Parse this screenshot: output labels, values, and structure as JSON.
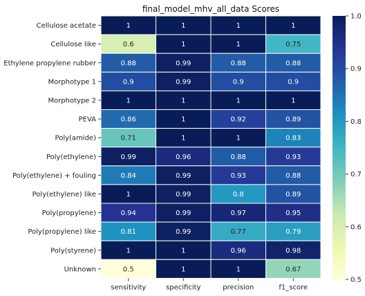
{
  "chart_data": {
    "type": "heatmap",
    "title": "final_model_mhv_all_data Scores",
    "columns": [
      "sensitivity",
      "specificity",
      "precision",
      "f1_score"
    ],
    "rows": [
      {
        "label": "Cellulose acetate",
        "values": [
          1,
          1,
          1,
          1
        ],
        "text": [
          "1",
          "1",
          "1",
          "1"
        ]
      },
      {
        "label": "Cellulose like",
        "values": [
          0.6,
          1,
          1,
          0.75
        ],
        "text": [
          "0.6",
          "1",
          "1",
          "0.75"
        ]
      },
      {
        "label": "Ethylene propylene rubber",
        "values": [
          0.88,
          0.99,
          0.88,
          0.88
        ],
        "text": [
          "0.88",
          "0.99",
          "0.88",
          "0.88"
        ]
      },
      {
        "label": "Morphotype 1",
        "values": [
          0.9,
          0.99,
          0.9,
          0.9
        ],
        "text": [
          "0.9",
          "0.99",
          "0.9",
          "0.9"
        ]
      },
      {
        "label": "Morphotype 2",
        "values": [
          1,
          1,
          1,
          1
        ],
        "text": [
          "1",
          "1",
          "1",
          "1"
        ]
      },
      {
        "label": "PEVA",
        "values": [
          0.86,
          1,
          0.92,
          0.89
        ],
        "text": [
          "0.86",
          "1",
          "0.92",
          "0.89"
        ]
      },
      {
        "label": "Poly(amide)",
        "values": [
          0.71,
          1,
          1,
          0.83
        ],
        "text": [
          "0.71",
          "1",
          "1",
          "0.83"
        ]
      },
      {
        "label": "Poly(ethylene)",
        "values": [
          0.99,
          0.96,
          0.88,
          0.93
        ],
        "text": [
          "0.99",
          "0.96",
          "0.88",
          "0.93"
        ]
      },
      {
        "label": "Poly(ethylene) + fouling",
        "values": [
          0.84,
          0.99,
          0.93,
          0.88
        ],
        "text": [
          "0.84",
          "0.99",
          "0.93",
          "0.88"
        ]
      },
      {
        "label": "Poly(ethylene) like",
        "values": [
          1,
          0.99,
          0.8,
          0.89
        ],
        "text": [
          "1",
          "0.99",
          "0.8",
          "0.89"
        ]
      },
      {
        "label": "Poly(propylene)",
        "values": [
          0.94,
          0.99,
          0.97,
          0.95
        ],
        "text": [
          "0.94",
          "0.99",
          "0.97",
          "0.95"
        ]
      },
      {
        "label": "Poly(propylene) like",
        "values": [
          0.81,
          0.99,
          0.77,
          0.79
        ],
        "text": [
          "0.81",
          "0.99",
          "0.77",
          "0.79"
        ]
      },
      {
        "label": "Poly(styrene)",
        "values": [
          1,
          1,
          0.96,
          0.98
        ],
        "text": [
          "1",
          "1",
          "0.96",
          "0.98"
        ]
      },
      {
        "label": "Unknown",
        "values": [
          0.5,
          1,
          1,
          0.67
        ],
        "text": [
          "0.5",
          "1",
          "1",
          "0.67"
        ]
      }
    ],
    "colorbar": {
      "range": [
        0.5,
        1.0
      ],
      "ticks": [
        0.5,
        0.6,
        0.7,
        0.8,
        0.9,
        1.0
      ],
      "tick_labels": [
        "0.5",
        "0.6",
        "0.7",
        "0.8",
        "0.9",
        "1.0"
      ],
      "colormap": "YlGnBu",
      "stops": [
        "#ffffd9",
        "#edf8b1",
        "#c7e9b4",
        "#7fcdbb",
        "#41b6c4",
        "#1d91c0",
        "#225ea8",
        "#253494",
        "#081d58"
      ]
    },
    "cell_borders": "white",
    "grid": false
  }
}
